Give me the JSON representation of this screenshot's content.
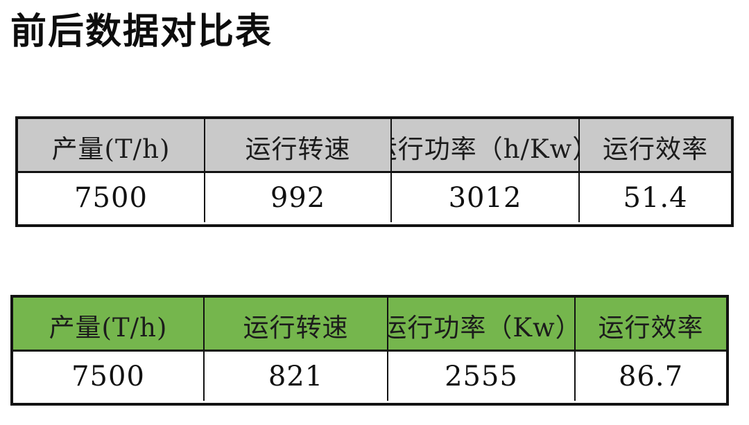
{
  "page": {
    "title": "前后数据对比表",
    "background_color": "#ffffff",
    "border_color": "#121212"
  },
  "tables": [
    {
      "id": "before",
      "header_bg": "#c9c9c9",
      "headers": [
        "产量(T/h)",
        "运行转速",
        "运行功率（h/Kw）",
        "运行效率"
      ],
      "values": [
        "7500",
        "992",
        "3012",
        "51.4"
      ]
    },
    {
      "id": "after",
      "header_bg": "#75b64d",
      "headers": [
        "产量(T/h)",
        "运行转速",
        "运行功率（Kw）",
        "运行效率"
      ],
      "values": [
        "7500",
        "821",
        "2555",
        "86.7"
      ]
    }
  ]
}
